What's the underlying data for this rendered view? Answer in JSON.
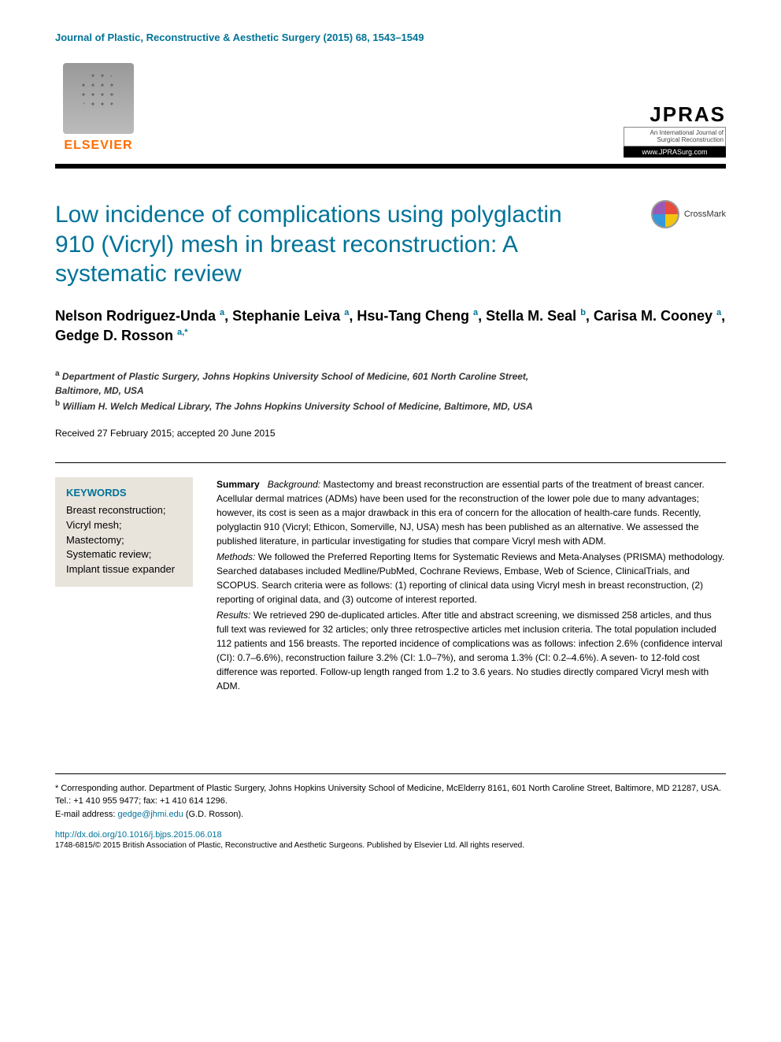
{
  "journal_header": "Journal of Plastic, Reconstructive & Aesthetic Surgery (2015) 68, 1543–1549",
  "publisher": {
    "name": "ELSEVIER"
  },
  "journal_logo": {
    "acronym": "JPRAS",
    "subtitle": "An International Journal of Surgical Reconstruction",
    "url": "www.JPRASurg.com"
  },
  "crossmark": "CrossMark",
  "article": {
    "title": "Low incidence of complications using polyglactin 910 (Vicryl) mesh in breast reconstruction: A systematic review",
    "authors_html": "Nelson Rodriguez-Unda <sup>a</sup>, Stephanie Leiva <sup>a</sup>, Hsu-Tang Cheng <sup>a</sup>, Stella M. Seal <sup>b</sup>, Carisa M. Cooney <sup>a</sup>, Gedge D. Rosson <sup>a,*</sup>",
    "affiliations": [
      {
        "marker": "a",
        "text": "Department of Plastic Surgery, Johns Hopkins University School of Medicine, 601 North Caroline Street, Baltimore, MD, USA"
      },
      {
        "marker": "b",
        "text": "William H. Welch Medical Library, The Johns Hopkins University School of Medicine, Baltimore, MD, USA"
      }
    ],
    "dates": "Received 27 February 2015; accepted 20 June 2015"
  },
  "keywords": {
    "heading": "KEYWORDS",
    "items": "Breast reconstruction;\nVicryl mesh;\nMastectomy;\nSystematic review;\nImplant tissue expander"
  },
  "abstract": {
    "summary_label": "Summary",
    "background_label": "Background:",
    "background_text": " Mastectomy and breast reconstruction are essential parts of the treatment of breast cancer. Acellular dermal matrices (ADMs) have been used for the reconstruction of the lower pole due to many advantages; however, its cost is seen as a major drawback in this era of concern for the allocation of health-care funds. Recently, polyglactin 910 (Vicryl; Ethicon, Somerville, NJ, USA) mesh has been published as an alternative. We assessed the published literature, in particular investigating for studies that compare Vicryl mesh with ADM.",
    "methods_label": "Methods:",
    "methods_text": " We followed the Preferred Reporting Items for Systematic Reviews and Meta-Analyses (PRISMA) methodology. Searched databases included Medline/PubMed, Cochrane Reviews, Embase, Web of Science, ClinicalTrials, and SCOPUS. Search criteria were as follows: (1) reporting of clinical data using Vicryl mesh in breast reconstruction, (2) reporting of original data, and (3) outcome of interest reported.",
    "results_label": "Results:",
    "results_text": " We retrieved 290 de-duplicated articles. After title and abstract screening, we dismissed 258 articles, and thus full text was reviewed for 32 articles; only three retrospective articles met inclusion criteria. The total population included 112 patients and 156 breasts. The reported incidence of complications was as follows: infection 2.6% (confidence interval (CI): 0.7–6.6%), reconstruction failure 3.2% (CI: 1.0–7%), and seroma 1.3% (CI: 0.2–4.6%). A seven- to 12-fold cost difference was reported. Follow-up length ranged from 1.2 to 3.6 years. No studies directly compared Vicryl mesh with ADM."
  },
  "footer": {
    "corresponding": "* Corresponding author. Department of Plastic Surgery, Johns Hopkins University School of Medicine, McElderry 8161, 601 North Caroline Street, Baltimore, MD 21287, USA. Tel.: +1 410 955 9477; fax: +1 410 614 1296.",
    "email_label": "E-mail address: ",
    "email": "gedge@jhmi.edu",
    "email_suffix": " (G.D. Rosson).",
    "doi": "http://dx.doi.org/10.1016/j.bjps.2015.06.018",
    "copyright": "1748-6815/© 2015 British Association of Plastic, Reconstructive and Aesthetic Surgeons. Published by Elsevier Ltd. All rights reserved."
  },
  "colors": {
    "teal": "#007398",
    "orange": "#ff6c00",
    "keyword_bg": "#e8e4dc",
    "black": "#000000",
    "white": "#ffffff"
  },
  "typography": {
    "title_fontsize": 30,
    "author_fontsize": 18,
    "body_fontsize": 12,
    "small_fontsize": 11
  }
}
